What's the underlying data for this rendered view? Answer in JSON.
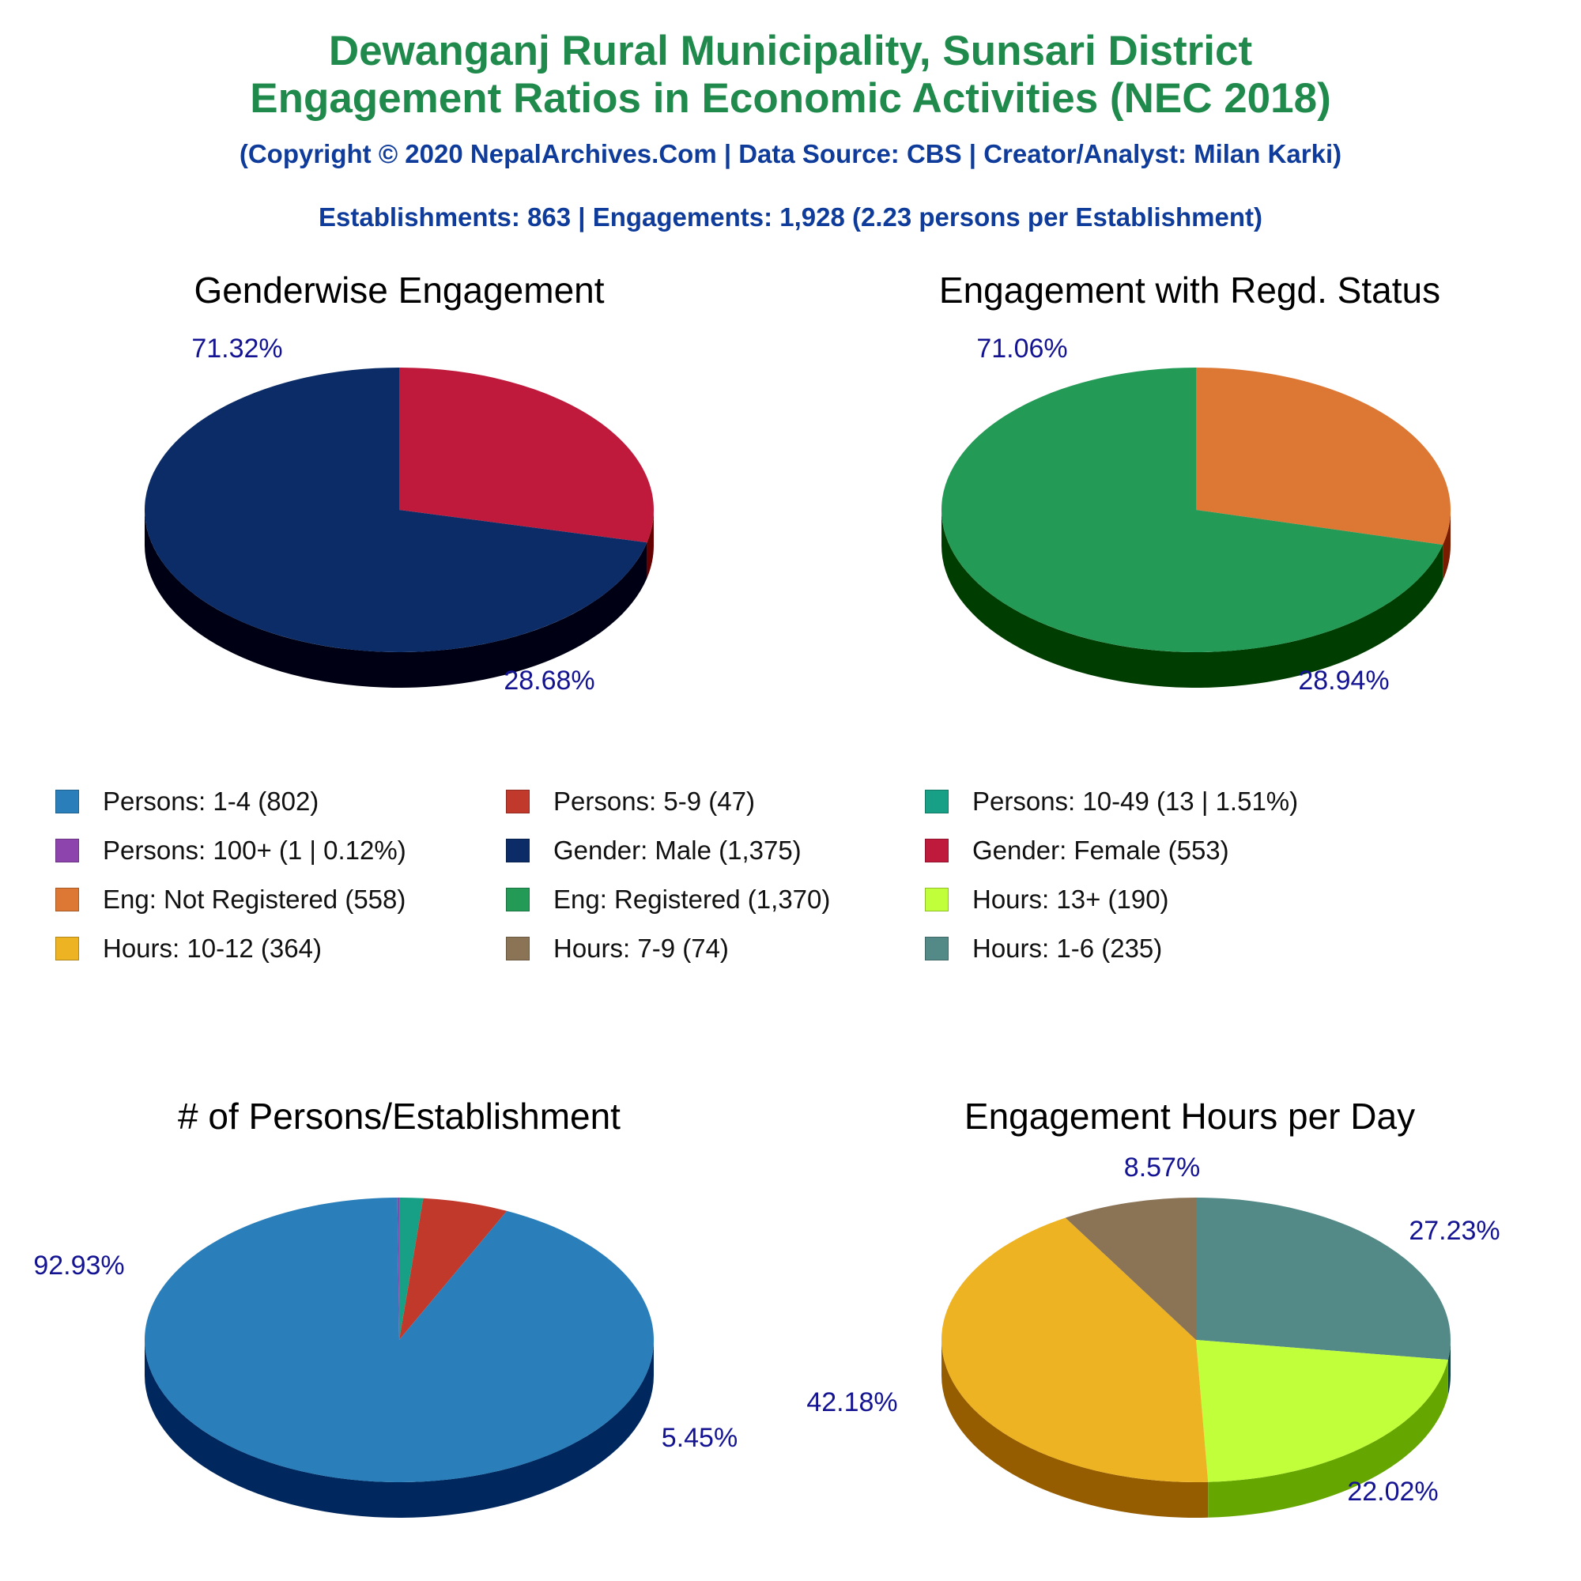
{
  "header": {
    "title_line1": "Dewanganj Rural Municipality, Sunsari District",
    "title_line2": "Engagement Ratios in Economic Activities (NEC 2018)",
    "copyright": "(Copyright © 2020 NepalArchives.Com | Data Source: CBS | Creator/Analyst: Milan Karki)",
    "summary": "Establishments: 863 | Engagements: 1,928 (2.23 persons per Establishment)"
  },
  "legend": [
    {
      "label": "Persons: 1-4 (802)",
      "color": "#2a7fba"
    },
    {
      "label": "Persons: 5-9 (47)",
      "color": "#c0392b"
    },
    {
      "label": "Persons: 10-49 (13 | 1.51%)",
      "color": "#17a085"
    },
    {
      "label": "Persons: 100+ (1 | 0.12%)",
      "color": "#8e44ad"
    },
    {
      "label": "Gender: Male (1,375)",
      "color": "#0b2c66"
    },
    {
      "label": "Gender: Female (553)",
      "color": "#bf1a3c"
    },
    {
      "label": "Eng: Not Registered (558)",
      "color": "#dd7734"
    },
    {
      "label": "Eng: Registered (1,370)",
      "color": "#239a56"
    },
    {
      "label": "Hours: 13+ (190)",
      "color": "#c0ff3a"
    },
    {
      "label": "Hours: 10-12 (364)",
      "color": "#edb322"
    },
    {
      "label": "Hours: 7-9 (74)",
      "color": "#8b7355"
    },
    {
      "label": "Hours: 1-6 (235)",
      "color": "#538a88"
    }
  ],
  "chart_data": [
    {
      "type": "pie",
      "title": "Genderwise Engagement",
      "slices": [
        {
          "name": "Gender: Female",
          "value": 553,
          "label": "28.68%",
          "color": "#bf1a3c",
          "side": "#660000"
        },
        {
          "name": "Gender: Male",
          "value": 1375,
          "label": "71.32%",
          "color": "#0b2c66",
          "side": "#000015"
        }
      ]
    },
    {
      "type": "pie",
      "title": "Engagement with Regd. Status",
      "slices": [
        {
          "name": "Eng: Not Registered",
          "value": 558,
          "label": "28.94%",
          "color": "#dd7734",
          "side": "#7a1c00"
        },
        {
          "name": "Eng: Registered",
          "value": 1370,
          "label": "71.06%",
          "color": "#239a56",
          "side": "#003d00"
        }
      ]
    },
    {
      "type": "pie",
      "title": "# of Persons/Establishment",
      "slices": [
        {
          "name": "Persons: 10-49",
          "value": 13,
          "label": "",
          "color": "#17a085",
          "side": "#004a34"
        },
        {
          "name": "Persons: 5-9",
          "value": 47,
          "label": "5.45%",
          "color": "#c0392b",
          "side": "#6b0000"
        },
        {
          "name": "Persons: 1-4",
          "value": 802,
          "label": "92.93%",
          "color": "#2a7fba",
          "side": "#00285e"
        },
        {
          "name": "Persons: 100+",
          "value": 1,
          "label": "",
          "color": "#8e44ad",
          "side": "#3c004f"
        }
      ]
    },
    {
      "type": "pie",
      "title": "Engagement Hours per Day",
      "slices": [
        {
          "name": "Hours: 1-6",
          "value": 235,
          "label": "27.23%",
          "color": "#538a88",
          "side": "#10403e"
        },
        {
          "name": "Hours: 13+",
          "value": 190,
          "label": "22.02%",
          "color": "#c0ff3a",
          "side": "#66a600"
        },
        {
          "name": "Hours: 10-12",
          "value": 364,
          "label": "42.18%",
          "color": "#edb322",
          "side": "#955c00"
        },
        {
          "name": "Hours: 7-9",
          "value": 74,
          "label": "8.57%",
          "color": "#8b7355",
          "side": "#3d2a14"
        }
      ]
    }
  ]
}
